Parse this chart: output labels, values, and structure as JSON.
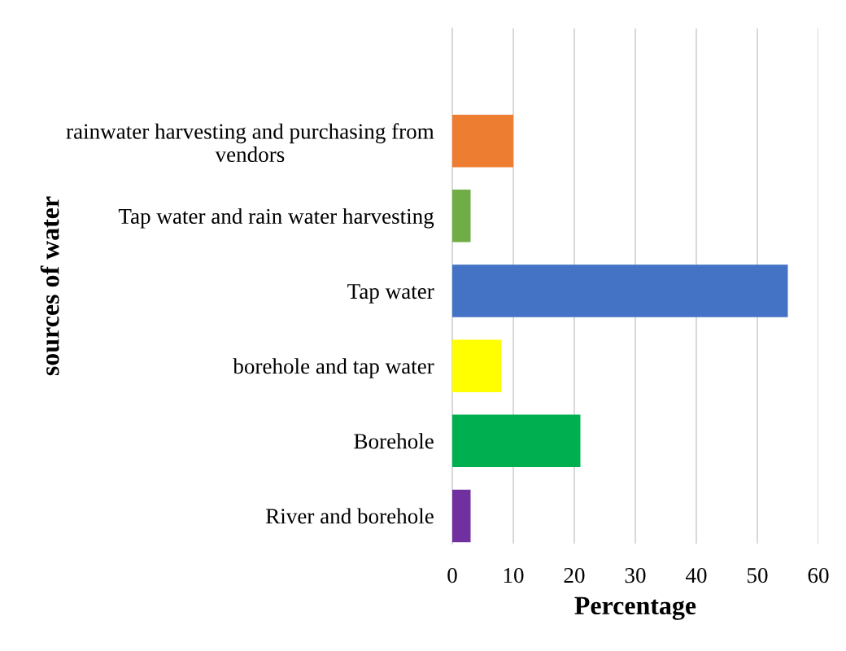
{
  "chart_data": {
    "type": "bar",
    "orientation": "horizontal",
    "categories": [
      "rainwater harvesting and purchasing from vendors",
      "Tap water and rain water harvesting",
      "Tap water",
      "borehole and tap water",
      "Borehole",
      "River and borehole"
    ],
    "values": [
      10,
      3,
      55,
      8,
      21,
      3
    ],
    "colors": [
      "#ed7d31",
      "#70ad47",
      "#4472c4",
      "#ffff00",
      "#00b050",
      "#7030a0"
    ],
    "xlabel": "Percentage",
    "ylabel": "sources of water",
    "xlim": [
      0,
      60
    ],
    "xticks": [
      0,
      10,
      20,
      30,
      40,
      50,
      60
    ],
    "grid": "x"
  }
}
